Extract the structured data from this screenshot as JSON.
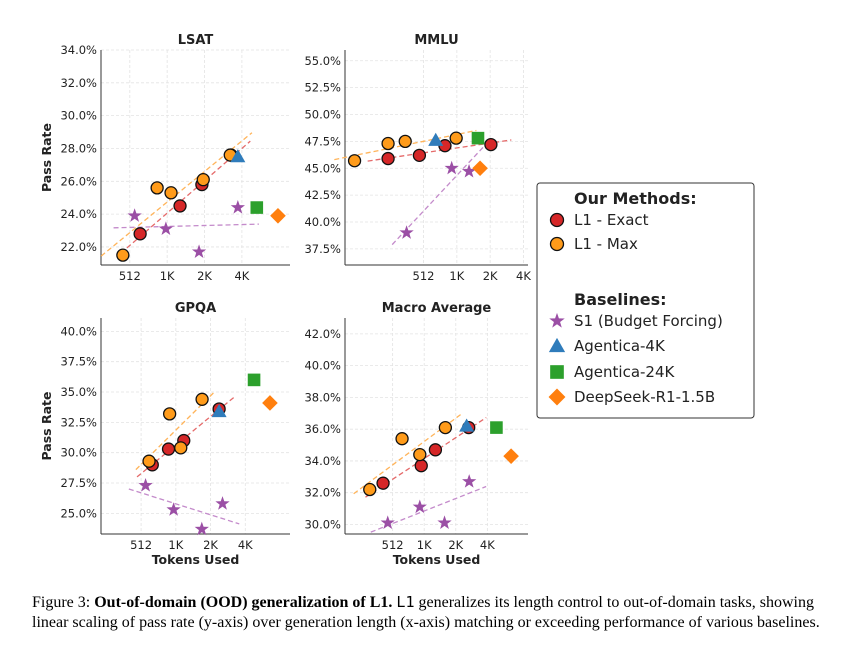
{
  "chart_data": [
    {
      "type": "scatter",
      "title": "LSAT",
      "xlabel": "",
      "ylabel": "Pass Rate",
      "x_scale": "log2",
      "x_ticks": [
        512,
        1024,
        2048,
        4096
      ],
      "x_tick_labels": [
        "512",
        "1K",
        "2K",
        "4K"
      ],
      "xlim": [
        300,
        10000
      ],
      "ylim": [
        20.9,
        34.0
      ],
      "y_ticks": [
        22,
        24,
        26,
        28,
        30,
        32,
        34
      ],
      "y_tick_labels": [
        "22.0%",
        "24.0%",
        "26.0%",
        "28.0%",
        "30.0%",
        "32.0%",
        "34.0%"
      ],
      "grid": true,
      "series": [
        {
          "name": "L1 - Exact",
          "marker": "circle",
          "color": "#d62728",
          "x": [
            620,
            1300,
            1950,
            3350
          ],
          "y": [
            22.8,
            24.5,
            25.8,
            27.6
          ]
        },
        {
          "name": "L1 - Max",
          "marker": "circle",
          "color": "#ff9b1a",
          "x": [
            450,
            850,
            1100,
            2000,
            3300
          ],
          "y": [
            21.5,
            25.6,
            25.3,
            26.1,
            27.6
          ]
        },
        {
          "name": "S1 (Budget Forcing)",
          "marker": "star",
          "color": "#9b4fa5",
          "x": [
            560,
            1000,
            1850,
            3800
          ],
          "y": [
            23.9,
            23.1,
            21.7,
            24.4
          ]
        },
        {
          "name": "Agentica-4K",
          "marker": "triangle",
          "color": "#2f7cbb",
          "x": [
            3800
          ],
          "y": [
            27.5
          ]
        },
        {
          "name": "Agentica-24K",
          "marker": "square",
          "color": "#2ca02c",
          "x": [
            5400
          ],
          "y": [
            24.4
          ]
        },
        {
          "name": "DeepSeek-R1-1.5B",
          "marker": "diamond",
          "color": "#ff7f0e",
          "x": [
            8000
          ],
          "y": [
            23.9
          ]
        }
      ]
    },
    {
      "type": "scatter",
      "title": "MMLU",
      "xlabel": "",
      "ylabel": "",
      "x_scale": "log2",
      "x_ticks": [
        512,
        1024,
        2048,
        4096
      ],
      "x_tick_labels": [
        "512",
        "1K",
        "2K",
        "4K"
      ],
      "xlim": [
        100,
        4500
      ],
      "ylim": [
        36.0,
        56.0
      ],
      "y_ticks": [
        37.5,
        40.0,
        42.5,
        45.0,
        47.5,
        50.0,
        52.5,
        55.0
      ],
      "y_tick_labels": [
        "37.5%",
        "40.0%",
        "42.5%",
        "45.0%",
        "47.5%",
        "50.0%",
        "52.5%",
        "55.0%"
      ],
      "grid": true,
      "series": [
        {
          "name": "L1 - Exact",
          "marker": "circle",
          "color": "#d62728",
          "x": [
            245,
            470,
            800,
            2080
          ],
          "y": [
            45.9,
            46.2,
            47.1,
            47.2
          ]
        },
        {
          "name": "L1 - Max",
          "marker": "circle",
          "color": "#ff9b1a",
          "x": [
            122,
            245,
            350,
            1010
          ],
          "y": [
            45.7,
            47.3,
            47.5,
            47.8
          ]
        },
        {
          "name": "S1 (Budget Forcing)",
          "marker": "star",
          "color": "#9b4fa5",
          "x": [
            360,
            920,
            1320
          ],
          "y": [
            39.0,
            45.0,
            44.7
          ]
        },
        {
          "name": "Agentica-4K",
          "marker": "triangle",
          "color": "#2f7cbb",
          "x": [
            660
          ],
          "y": [
            47.6
          ]
        },
        {
          "name": "Agentica-24K",
          "marker": "square",
          "color": "#2ca02c",
          "x": [
            1590
          ],
          "y": [
            47.8
          ]
        },
        {
          "name": "DeepSeek-R1-1.5B",
          "marker": "diamond",
          "color": "#ff7f0e",
          "x": [
            1660
          ],
          "y": [
            45.0
          ]
        }
      ]
    },
    {
      "type": "scatter",
      "title": "GPQA",
      "xlabel": "Tokens Used",
      "ylabel": "Pass Rate",
      "x_scale": "log2",
      "x_ticks": [
        512,
        1024,
        2048,
        4096
      ],
      "x_tick_labels": [
        "512",
        "1K",
        "2K",
        "4K"
      ],
      "xlim": [
        230,
        10000
      ],
      "ylim": [
        23.3,
        41.1
      ],
      "y_ticks": [
        25.0,
        27.5,
        30.0,
        32.5,
        35.0,
        37.5,
        40.0
      ],
      "y_tick_labels": [
        "25.0%",
        "27.5%",
        "30.0%",
        "32.5%",
        "35.0%",
        "37.5%",
        "40.0%"
      ],
      "grid": true,
      "series": [
        {
          "name": "L1 - Exact",
          "marker": "circle",
          "color": "#d62728",
          "x": [
            640,
            885,
            1200,
            2430
          ],
          "y": [
            29.0,
            30.3,
            31.0,
            33.6
          ]
        },
        {
          "name": "L1 - Max",
          "marker": "circle",
          "color": "#ff9b1a",
          "x": [
            600,
            905,
            1130,
            1730
          ],
          "y": [
            29.3,
            33.2,
            30.4,
            34.4
          ]
        },
        {
          "name": "S1 (Budget Forcing)",
          "marker": "star",
          "color": "#9b4fa5",
          "x": [
            560,
            980,
            1720,
            2600
          ],
          "y": [
            27.3,
            25.3,
            23.7,
            25.8
          ]
        },
        {
          "name": "Agentica-4K",
          "marker": "triangle",
          "color": "#2f7cbb",
          "x": [
            2430
          ],
          "y": [
            33.4
          ]
        },
        {
          "name": "Agentica-24K",
          "marker": "square",
          "color": "#2ca02c",
          "x": [
            4880
          ],
          "y": [
            36.0
          ]
        },
        {
          "name": "DeepSeek-R1-1.5B",
          "marker": "diamond",
          "color": "#ff7f0e",
          "x": [
            6700
          ],
          "y": [
            34.1
          ]
        }
      ]
    },
    {
      "type": "scatter",
      "title": "Macro Average",
      "xlabel": "Tokens Used",
      "ylabel": "",
      "x_scale": "log2",
      "x_ticks": [
        512,
        1024,
        2048,
        4096
      ],
      "x_tick_labels": [
        "512",
        "1K",
        "2K",
        "4K"
      ],
      "xlim": [
        180,
        10000
      ],
      "ylim": [
        29.4,
        43.0
      ],
      "y_ticks": [
        30.0,
        32.0,
        34.0,
        36.0,
        38.0,
        40.0,
        42.0
      ],
      "y_tick_labels": [
        "30.0%",
        "32.0%",
        "34.0%",
        "36.0%",
        "38.0%",
        "40.0%",
        "42.0%"
      ],
      "grid": true,
      "series": [
        {
          "name": "L1 - Exact",
          "marker": "circle",
          "color": "#d62728",
          "x": [
            415,
            960,
            1310,
            2720
          ],
          "y": [
            32.6,
            33.7,
            34.7,
            36.1
          ]
        },
        {
          "name": "L1 - Max",
          "marker": "circle",
          "color": "#ff9b1a",
          "x": [
            310,
            630,
            930,
            1630
          ],
          "y": [
            32.2,
            35.4,
            34.4,
            36.1
          ]
        },
        {
          "name": "S1 (Budget Forcing)",
          "marker": "star",
          "color": "#9b4fa5",
          "x": [
            460,
            930,
            1600,
            2750
          ],
          "y": [
            30.1,
            31.1,
            30.1,
            32.7
          ]
        },
        {
          "name": "Agentica-4K",
          "marker": "triangle",
          "color": "#2f7cbb",
          "x": [
            2600
          ],
          "y": [
            36.2
          ]
        },
        {
          "name": "Agentica-24K",
          "marker": "square",
          "color": "#2ca02c",
          "x": [
            5000
          ],
          "y": [
            36.1
          ]
        },
        {
          "name": "DeepSeek-R1-1.5B",
          "marker": "diamond",
          "color": "#ff7f0e",
          "x": [
            6900
          ],
          "y": [
            34.3
          ]
        }
      ]
    }
  ],
  "legend": {
    "placement": "right",
    "our_methods_title": "Our Methods:",
    "baselines_title": "Baselines:",
    "items": [
      {
        "label": "L1 - Exact",
        "marker": "circle",
        "color": "#d62728"
      },
      {
        "label": "L1 - Max",
        "marker": "circle",
        "color": "#ff9b1a"
      },
      {
        "label": "S1 (Budget Forcing)",
        "marker": "star",
        "color": "#9b4fa5"
      },
      {
        "label": "Agentica-4K",
        "marker": "triangle",
        "color": "#2f7cbb"
      },
      {
        "label": "Agentica-24K",
        "marker": "square",
        "color": "#2ca02c"
      },
      {
        "label": "DeepSeek-R1-1.5B",
        "marker": "diamond",
        "color": "#ff7f0e"
      }
    ]
  },
  "caption": {
    "prefix": "Figure 3: ",
    "bold": "Out-of-domain (OOD) generalization of L1.",
    "model": "L1",
    "rest": " generalizes its length control to out-of-domain tasks, showing linear scaling of pass rate (y-axis) over generation length (x-axis) matching or exceeding performance of various baselines."
  }
}
